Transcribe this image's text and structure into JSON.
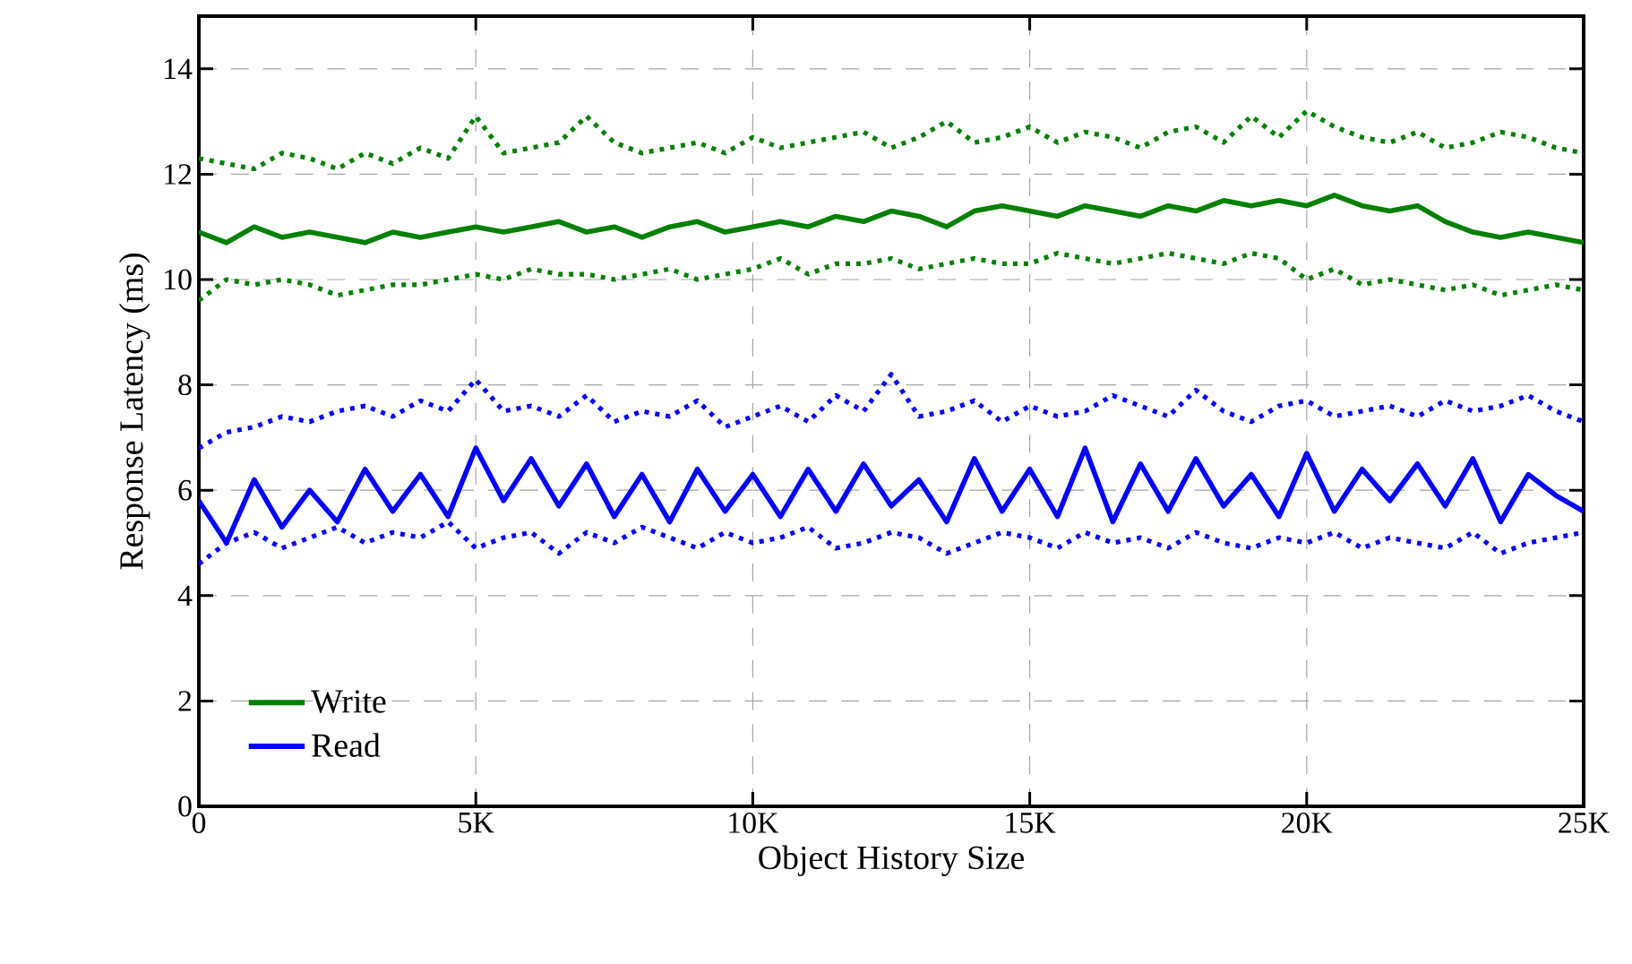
{
  "chart_data": {
    "type": "line",
    "xlabel": "Object History Size",
    "ylabel": "Response Latency (ms)",
    "x": [
      0,
      500,
      1000,
      1500,
      2000,
      2500,
      3000,
      3500,
      4000,
      4500,
      5000,
      5500,
      6000,
      6500,
      7000,
      7500,
      8000,
      8500,
      9000,
      9500,
      10000,
      10500,
      11000,
      11500,
      12000,
      12500,
      13000,
      13500,
      14000,
      14500,
      15000,
      15500,
      16000,
      16500,
      17000,
      17500,
      18000,
      18500,
      19000,
      19500,
      20000,
      20500,
      21000,
      21500,
      22000,
      22500,
      23000,
      23500,
      24000,
      24500,
      25000
    ],
    "xlim": [
      0,
      25000
    ],
    "ylim": [
      0,
      15
    ],
    "xticks": [
      {
        "value": 0,
        "label": "0"
      },
      {
        "value": 5000,
        "label": "5K"
      },
      {
        "value": 10000,
        "label": "10K"
      },
      {
        "value": 15000,
        "label": "15K"
      },
      {
        "value": 20000,
        "label": "20K"
      },
      {
        "value": 25000,
        "label": "25K"
      }
    ],
    "yticks": [
      0,
      2,
      4,
      6,
      8,
      10,
      12,
      14
    ],
    "grid": true,
    "legend": "bottom left",
    "series": [
      {
        "name": "Write",
        "color": "#008000",
        "line_style": "solid",
        "values": [
          10.9,
          10.7,
          11.0,
          10.8,
          10.9,
          10.8,
          10.7,
          10.9,
          10.8,
          10.9,
          11.0,
          10.9,
          11.0,
          11.1,
          10.9,
          11.0,
          10.8,
          11.0,
          11.1,
          10.9,
          11.0,
          11.1,
          11.0,
          11.2,
          11.1,
          11.3,
          11.2,
          11.0,
          11.3,
          11.4,
          11.3,
          11.2,
          11.4,
          11.3,
          11.2,
          11.4,
          11.3,
          11.5,
          11.4,
          11.5,
          11.4,
          11.6,
          11.4,
          11.3,
          11.4,
          11.1,
          10.9,
          10.8,
          10.9,
          10.8,
          10.7
        ]
      },
      {
        "name": "Read",
        "color": "#0000ff",
        "line_style": "solid",
        "values": [
          5.8,
          5.0,
          6.2,
          5.3,
          6.0,
          5.4,
          6.4,
          5.6,
          6.3,
          5.5,
          6.8,
          5.8,
          6.6,
          5.7,
          6.5,
          5.5,
          6.3,
          5.4,
          6.4,
          5.6,
          6.3,
          5.5,
          6.4,
          5.6,
          6.5,
          5.7,
          6.2,
          5.4,
          6.6,
          5.6,
          6.4,
          5.5,
          6.8,
          5.4,
          6.5,
          5.6,
          6.6,
          5.7,
          6.3,
          5.5,
          6.7,
          5.6,
          6.4,
          5.8,
          6.5,
          5.7,
          6.6,
          5.4,
          6.3,
          5.9,
          5.6
        ]
      },
      {
        "color": "#008000",
        "line_style": "dotted",
        "values": [
          12.3,
          12.2,
          12.1,
          12.4,
          12.3,
          12.1,
          12.4,
          12.2,
          12.5,
          12.3,
          13.1,
          12.4,
          12.5,
          12.6,
          13.1,
          12.6,
          12.4,
          12.5,
          12.6,
          12.4,
          12.7,
          12.5,
          12.6,
          12.7,
          12.8,
          12.5,
          12.7,
          13.0,
          12.6,
          12.7,
          12.9,
          12.6,
          12.8,
          12.7,
          12.5,
          12.8,
          12.9,
          12.6,
          13.1,
          12.7,
          13.2,
          12.9,
          12.7,
          12.6,
          12.8,
          12.5,
          12.6,
          12.8,
          12.7,
          12.5,
          12.4
        ]
      },
      {
        "color": "#008000",
        "line_style": "dotted",
        "values": [
          9.6,
          10.0,
          9.9,
          10.0,
          9.9,
          9.7,
          9.8,
          9.9,
          9.9,
          10.0,
          10.1,
          10.0,
          10.2,
          10.1,
          10.1,
          10.0,
          10.1,
          10.2,
          10.0,
          10.1,
          10.2,
          10.4,
          10.1,
          10.3,
          10.3,
          10.4,
          10.2,
          10.3,
          10.4,
          10.3,
          10.3,
          10.5,
          10.4,
          10.3,
          10.4,
          10.5,
          10.4,
          10.3,
          10.5,
          10.4,
          10.0,
          10.2,
          9.9,
          10.0,
          9.9,
          9.8,
          9.9,
          9.7,
          9.8,
          9.9,
          9.8
        ]
      },
      {
        "color": "#0000ff",
        "line_style": "dotted",
        "values": [
          6.8,
          7.1,
          7.2,
          7.4,
          7.3,
          7.5,
          7.6,
          7.4,
          7.7,
          7.5,
          8.1,
          7.5,
          7.6,
          7.4,
          7.8,
          7.3,
          7.5,
          7.4,
          7.7,
          7.2,
          7.4,
          7.6,
          7.3,
          7.8,
          7.5,
          8.2,
          7.4,
          7.5,
          7.7,
          7.3,
          7.6,
          7.4,
          7.5,
          7.8,
          7.6,
          7.4,
          7.9,
          7.5,
          7.3,
          7.6,
          7.7,
          7.4,
          7.5,
          7.6,
          7.4,
          7.7,
          7.5,
          7.6,
          7.8,
          7.5,
          7.3
        ]
      },
      {
        "color": "#0000ff",
        "line_style": "dotted",
        "values": [
          4.6,
          5.0,
          5.2,
          4.9,
          5.1,
          5.3,
          5.0,
          5.2,
          5.1,
          5.4,
          4.9,
          5.1,
          5.2,
          4.8,
          5.2,
          5.0,
          5.3,
          5.1,
          4.9,
          5.2,
          5.0,
          5.1,
          5.3,
          4.9,
          5.0,
          5.2,
          5.1,
          4.8,
          5.0,
          5.2,
          5.1,
          4.9,
          5.2,
          5.0,
          5.1,
          4.9,
          5.2,
          5.0,
          4.9,
          5.1,
          5.0,
          5.2,
          4.9,
          5.1,
          5.0,
          4.9,
          5.2,
          4.8,
          5.0,
          5.1,
          5.2
        ]
      }
    ]
  }
}
